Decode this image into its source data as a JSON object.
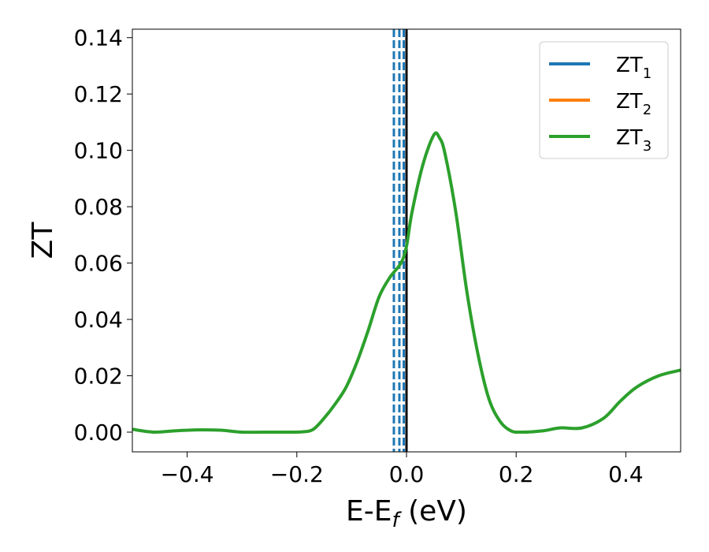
{
  "chart_data": {
    "type": "line",
    "xlabel": "E-E",
    "xlabel_sub": "f",
    "xlabel_unit": " (eV)",
    "ylabel": "ZT",
    "xlim": [
      -0.5,
      0.5
    ],
    "ylim": [
      -0.007,
      0.143
    ],
    "xticks": [
      -0.4,
      -0.2,
      0.0,
      0.2,
      0.4
    ],
    "xtick_labels": [
      "−0.4",
      "−0.2",
      "0.0",
      "0.2",
      "0.4"
    ],
    "yticks": [
      0.0,
      0.02,
      0.04,
      0.06,
      0.08,
      0.1,
      0.12,
      0.14
    ],
    "ytick_labels": [
      "0.00",
      "0.02",
      "0.04",
      "0.06",
      "0.08",
      "0.10",
      "0.12",
      "0.14"
    ],
    "grid": false,
    "legend_position": "top-right",
    "legend": [
      {
        "base": "ZT",
        "sub": "1",
        "color": "#1f77b4"
      },
      {
        "base": "ZT",
        "sub": "2",
        "color": "#ff7f0e"
      },
      {
        "base": "ZT",
        "sub": "3",
        "color": "#2ca02c"
      }
    ],
    "vertical_lines": [
      {
        "x": -0.023,
        "color": "#1f77b4",
        "style": "dashed"
      },
      {
        "x": -0.013,
        "color": "#1f77b4",
        "style": "dashed"
      },
      {
        "x": -0.005,
        "color": "#1f77b4",
        "style": "dashed"
      },
      {
        "x": 0.0,
        "color": "#000000",
        "style": "solid"
      }
    ],
    "series": [
      {
        "color": "#2ca02c",
        "x": [
          -0.5,
          -0.46,
          -0.42,
          -0.38,
          -0.34,
          -0.3,
          -0.26,
          -0.22,
          -0.19,
          -0.17,
          -0.15,
          -0.13,
          -0.11,
          -0.09,
          -0.07,
          -0.05,
          -0.03,
          -0.01,
          0.0,
          0.01,
          0.03,
          0.05,
          0.06,
          0.07,
          0.09,
          0.11,
          0.13,
          0.15,
          0.17,
          0.19,
          0.21,
          0.25,
          0.28,
          0.32,
          0.36,
          0.39,
          0.42,
          0.46,
          0.5
        ],
        "y": [
          0.001,
          0.0,
          0.0005,
          0.0008,
          0.0007,
          0.0,
          0.0,
          0.0,
          0.0001,
          0.001,
          0.005,
          0.01,
          0.016,
          0.025,
          0.036,
          0.048,
          0.055,
          0.06,
          0.066,
          0.078,
          0.095,
          0.1055,
          0.1045,
          0.099,
          0.078,
          0.05,
          0.028,
          0.012,
          0.004,
          0.0005,
          0.0,
          0.0005,
          0.0015,
          0.0015,
          0.005,
          0.011,
          0.016,
          0.02,
          0.022
        ]
      }
    ]
  }
}
